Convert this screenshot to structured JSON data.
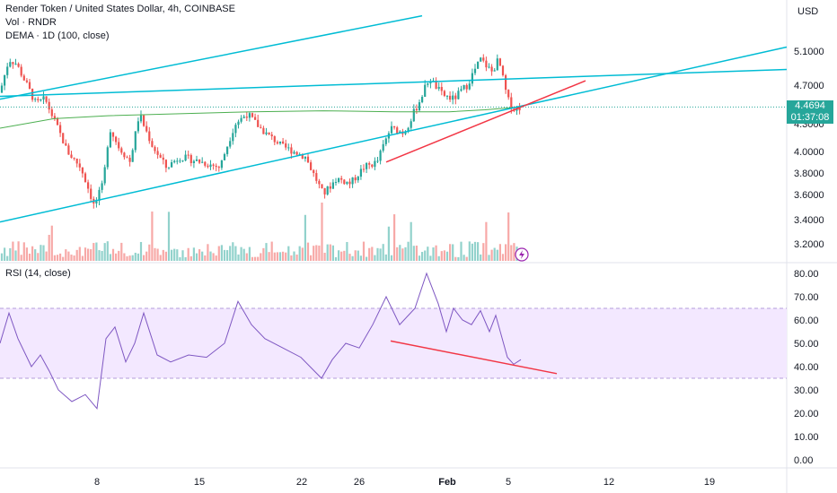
{
  "header": {
    "title": "Render Token / United States Dollar, 4h, COINBASE",
    "vol_label": "Vol · RNDR",
    "dema_label": "DEMA · 1D (100, close)",
    "currency": "USD",
    "rsi_label": "RSI (14, close)"
  },
  "price_tag": {
    "price": "4.4694",
    "countdown": "01:37:08",
    "color": "#26a69a"
  },
  "colors": {
    "up": "#26a69a",
    "down": "#ef5350",
    "trendline": "#00bcd4",
    "dema": "#4caf50",
    "red_line": "#f23645",
    "rsi": "#7e57c2",
    "rsi_band": "#f3e8ff"
  },
  "chart_data": [
    {
      "type": "candlestick",
      "title": "Render Token / United States Dollar, 4h, COINBASE",
      "y_ticks": [
        "5.1000",
        "4.7000",
        "4.3000",
        "4.0000",
        "3.8000",
        "3.6000",
        "3.4000",
        "3.2000"
      ],
      "x_ticks": [
        "8",
        "15",
        "22",
        "26",
        "Feb",
        "5",
        "12",
        "19"
      ],
      "last_price": 4.4694,
      "price_path": [
        [
          0,
          4.62
        ],
        [
          10,
          5.0
        ],
        [
          18,
          4.95
        ],
        [
          30,
          4.7
        ],
        [
          40,
          4.5
        ],
        [
          50,
          4.55
        ],
        [
          62,
          4.3
        ],
        [
          75,
          4.0
        ],
        [
          90,
          3.85
        ],
        [
          105,
          3.5
        ],
        [
          115,
          3.7
        ],
        [
          122,
          4.25
        ],
        [
          132,
          4.05
        ],
        [
          145,
          3.9
        ],
        [
          155,
          4.4
        ],
        [
          170,
          4.05
        ],
        [
          185,
          3.85
        ],
        [
          200,
          3.95
        ],
        [
          225,
          3.9
        ],
        [
          245,
          3.85
        ],
        [
          262,
          4.3
        ],
        [
          275,
          4.4
        ],
        [
          295,
          4.2
        ],
        [
          315,
          4.05
        ],
        [
          340,
          3.95
        ],
        [
          360,
          3.6
        ],
        [
          375,
          3.75
        ],
        [
          390,
          3.7
        ],
        [
          405,
          3.85
        ],
        [
          420,
          3.9
        ],
        [
          435,
          4.25
        ],
        [
          450,
          4.2
        ],
        [
          468,
          4.55
        ],
        [
          478,
          4.78
        ],
        [
          492,
          4.6
        ],
        [
          505,
          4.55
        ],
        [
          520,
          4.7
        ],
        [
          535,
          5.0
        ],
        [
          548,
          4.85
        ],
        [
          555,
          5.0
        ],
        [
          565,
          4.55
        ],
        [
          572,
          4.45
        ],
        [
          580,
          4.47
        ]
      ],
      "dema_path": [
        [
          0,
          4.25
        ],
        [
          60,
          4.35
        ],
        [
          120,
          4.38
        ],
        [
          200,
          4.4
        ],
        [
          280,
          4.42
        ],
        [
          360,
          4.43
        ],
        [
          440,
          4.42
        ],
        [
          500,
          4.42
        ],
        [
          540,
          4.44
        ],
        [
          580,
          4.47
        ]
      ],
      "trendlines": [
        {
          "color": "#00bcd4",
          "from": [
            0,
            4.55
          ],
          "to": [
            470,
            5.55
          ]
        },
        {
          "color": "#00bcd4",
          "from": [
            0,
            4.58
          ],
          "to": [
            876,
            4.88
          ]
        },
        {
          "color": "#00bcd4",
          "from": [
            0,
            3.38
          ],
          "to": [
            876,
            5.15
          ]
        },
        {
          "color": "#f23645",
          "from": [
            430,
            3.9
          ],
          "to": [
            652,
            4.75
          ]
        }
      ]
    },
    {
      "type": "line",
      "title": "RSI (14, close)",
      "y_ticks": [
        "80.00",
        "70.00",
        "60.00",
        "50.00",
        "40.00",
        "30.00",
        "20.00",
        "10.00",
        "0.00"
      ],
      "band": [
        35,
        65
      ],
      "values_path": [
        [
          0,
          50
        ],
        [
          10,
          63
        ],
        [
          20,
          52
        ],
        [
          35,
          40
        ],
        [
          45,
          45
        ],
        [
          55,
          38
        ],
        [
          65,
          30
        ],
        [
          80,
          25
        ],
        [
          95,
          28
        ],
        [
          108,
          22
        ],
        [
          118,
          52
        ],
        [
          128,
          57
        ],
        [
          140,
          42
        ],
        [
          150,
          50
        ],
        [
          160,
          63
        ],
        [
          175,
          45
        ],
        [
          190,
          42
        ],
        [
          210,
          45
        ],
        [
          230,
          44
        ],
        [
          250,
          50
        ],
        [
          265,
          68
        ],
        [
          280,
          58
        ],
        [
          295,
          52
        ],
        [
          315,
          48
        ],
        [
          335,
          44
        ],
        [
          358,
          35
        ],
        [
          370,
          43
        ],
        [
          385,
          50
        ],
        [
          400,
          48
        ],
        [
          415,
          58
        ],
        [
          430,
          70
        ],
        [
          445,
          58
        ],
        [
          462,
          65
        ],
        [
          475,
          80
        ],
        [
          488,
          67
        ],
        [
          497,
          55
        ],
        [
          505,
          65
        ],
        [
          515,
          60
        ],
        [
          525,
          58
        ],
        [
          535,
          64
        ],
        [
          545,
          55
        ],
        [
          552,
          62
        ],
        [
          565,
          44
        ],
        [
          572,
          41
        ],
        [
          580,
          43
        ]
      ],
      "trendline": {
        "color": "#f23645",
        "from": [
          435,
          51
        ],
        "to": [
          620,
          37
        ]
      }
    }
  ]
}
